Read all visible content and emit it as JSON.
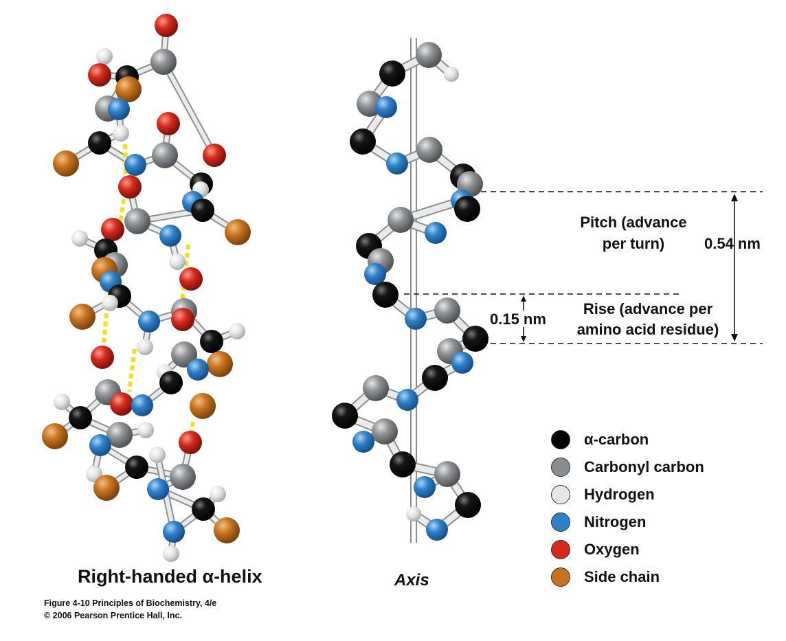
{
  "helix_title": "Right-handed α-helix",
  "axis_label": "Axis",
  "credit_line1": "Figure 4-10  Principles of Biochemistry, 4/e",
  "credit_line2": "© 2006 Pearson Prentice Hall, Inc.",
  "pitch_label": "Pitch (advance per turn)",
  "pitch_value": "0.54 nm",
  "rise_label": "Rise (advance per amino acid residue)",
  "rise_value": "0.15 nm",
  "legend": [
    {
      "label": "α-carbon",
      "color": "#000000"
    },
    {
      "label": "Carbonyl carbon",
      "color": "#8a8d90"
    },
    {
      "label": "Hydrogen",
      "color": "#e6e8e8"
    },
    {
      "label": "Nitrogen",
      "color": "#2f80c8"
    },
    {
      "label": "Oxygen",
      "color": "#d42a1c"
    },
    {
      "label": "Side chain",
      "color": "#c7731e"
    }
  ],
  "atom_colors": {
    "K": "#000000",
    "G": "#8a8d90",
    "H": "#e6e8e8",
    "N": "#2f80c8",
    "O": "#d42a1c",
    "S": "#c7731e"
  },
  "hbond_color": "#f2df1e"
}
